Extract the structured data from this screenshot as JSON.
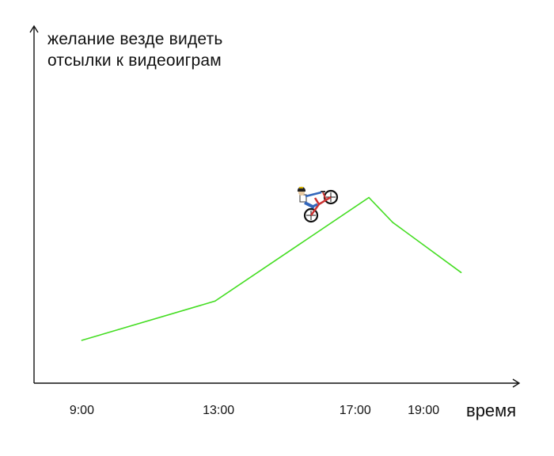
{
  "chart_data": {
    "type": "line",
    "ylabel_lines": [
      "желание везде видеть",
      "отсылки к видеоиграм"
    ],
    "xlabel": "время",
    "x_ticks": [
      {
        "label": "9:00",
        "hour": 9
      },
      {
        "label": "13:00",
        "hour": 13
      },
      {
        "label": "17:00",
        "hour": 17
      },
      {
        "label": "19:00",
        "hour": 19
      }
    ],
    "series": [
      {
        "color": "#44dd22",
        "points": [
          {
            "hour": 9.0,
            "value": 0.12
          },
          {
            "hour": 12.9,
            "value": 0.23
          },
          {
            "hour": 17.4,
            "value": 0.52
          },
          {
            "hour": 18.1,
            "value": 0.45
          },
          {
            "hour": 20.1,
            "value": 0.31
          }
        ]
      }
    ],
    "xlim": [
      7.6,
      21.8
    ],
    "ylim": [
      0,
      1
    ],
    "annotation_icon": "bmx-rider-icon",
    "grid": false
  }
}
